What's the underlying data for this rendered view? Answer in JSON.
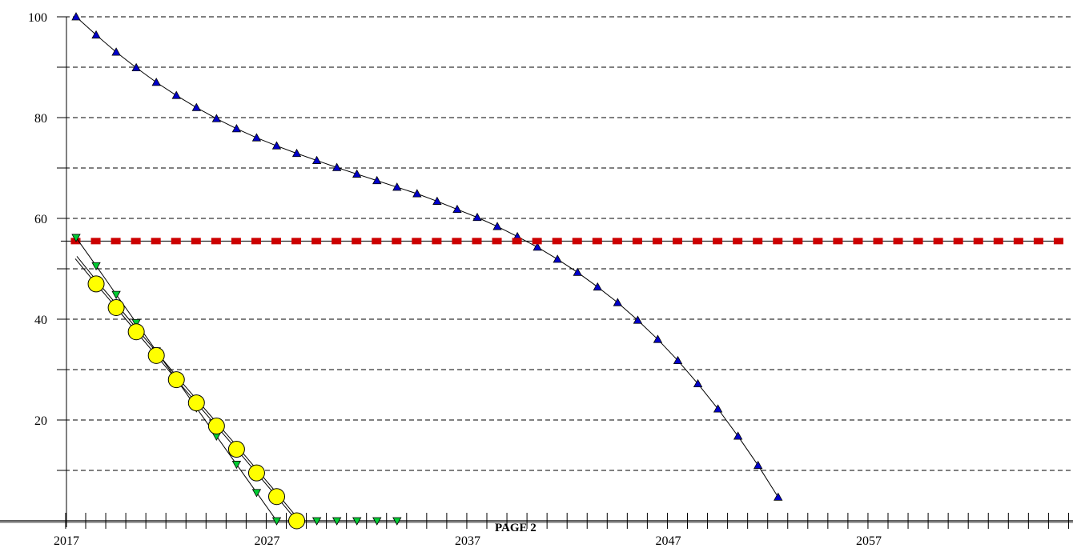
{
  "page_label": "PAGE 2",
  "chart_data": {
    "type": "line",
    "title": "",
    "xlabel": "",
    "ylabel": "",
    "xlim": [
      2016,
      2067
    ],
    "ylim": [
      0,
      100
    ],
    "x_ticks": [
      2017,
      2027,
      2037,
      2047,
      2057
    ],
    "y_ticks": [
      20,
      40,
      60,
      80,
      100
    ],
    "grid": "horizontal-dashed",
    "legend": "none",
    "series": [
      {
        "marker": "triangle-up",
        "color": "#0000cc",
        "x": [
          2017,
          2018,
          2019,
          2020,
          2021,
          2022,
          2023,
          2024,
          2025,
          2026,
          2027,
          2028,
          2029,
          2030,
          2031,
          2032,
          2033,
          2034,
          2035,
          2036,
          2037,
          2038,
          2039,
          2040,
          2041,
          2042,
          2043,
          2044,
          2045,
          2046,
          2047,
          2048,
          2049,
          2050,
          2051,
          2052,
          2053,
          2054,
          2055
        ],
        "values": [
          100,
          96.4,
          93,
          89.9,
          87,
          84.4,
          82,
          79.8,
          77.8,
          76,
          74.4,
          72.9,
          71.5,
          70.1,
          68.8,
          67.5,
          66.2,
          64.9,
          63.4,
          61.8,
          60.2,
          58.4,
          56.4,
          54.3,
          51.9,
          49.3,
          46.4,
          43.3,
          39.8,
          36,
          31.8,
          27.2,
          22.2,
          16.8,
          11,
          4.7,
          null,
          null,
          null
        ]
      },
      {
        "marker": "square",
        "color": "#cc0000",
        "x": [
          2017,
          2018,
          2019,
          2020,
          2021,
          2022,
          2023,
          2024,
          2025,
          2026,
          2027,
          2028,
          2029,
          2030,
          2031,
          2032,
          2033,
          2034,
          2035,
          2036,
          2037,
          2038,
          2039,
          2040,
          2041,
          2042,
          2043,
          2044,
          2045,
          2046,
          2047,
          2048,
          2049,
          2050,
          2051,
          2052,
          2053,
          2054,
          2055,
          2056,
          2057,
          2058,
          2059,
          2060,
          2061,
          2062,
          2063,
          2064,
          2065,
          2066
        ],
        "values": [
          55.5,
          55.5,
          55.5,
          55.5,
          55.5,
          55.5,
          55.5,
          55.5,
          55.5,
          55.5,
          55.5,
          55.5,
          55.5,
          55.5,
          55.5,
          55.5,
          55.5,
          55.5,
          55.5,
          55.5,
          55.5,
          55.5,
          55.5,
          55.5,
          55.5,
          55.5,
          55.5,
          55.5,
          55.5,
          55.5,
          55.5,
          55.5,
          55.5,
          55.5,
          55.5,
          55.5,
          55.5,
          55.5,
          55.5,
          55.5,
          55.5,
          55.5,
          55.5,
          55.5,
          55.5,
          55.5,
          55.5,
          55.5,
          55.5,
          55.5
        ]
      },
      {
        "marker": "triangle-down",
        "color": "#00cc33",
        "x": [
          2017,
          2018,
          2019,
          2020,
          2021,
          2022,
          2023,
          2024,
          2025,
          2026,
          2027,
          2028,
          2029,
          2030,
          2031,
          2032,
          2033
        ],
        "values": [
          56.2,
          50.6,
          44.9,
          39.3,
          33.7,
          28.1,
          22.4,
          16.8,
          11.2,
          5.6,
          0,
          0,
          0,
          0,
          0,
          0,
          0
        ]
      },
      {
        "marker": "circle",
        "color": "#ffff00",
        "x": [
          2018,
          2019,
          2020,
          2021,
          2022,
          2023,
          2024,
          2025,
          2026,
          2027,
          2028
        ],
        "values": [
          47,
          42.3,
          37.5,
          32.8,
          28,
          23.4,
          18.8,
          14.2,
          9.5,
          4.8,
          0
        ]
      }
    ]
  }
}
